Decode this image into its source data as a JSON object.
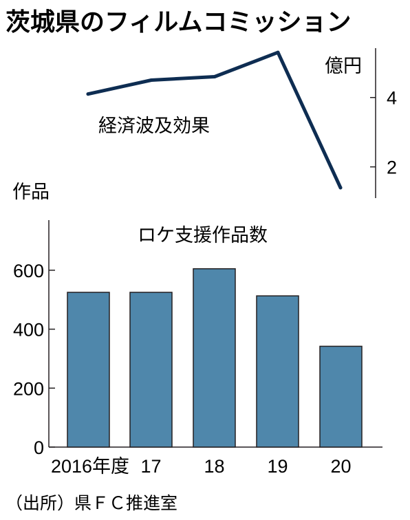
{
  "chart_data": [
    {
      "type": "line",
      "title": "茨城県のフィルムコミッション",
      "series": [
        {
          "name": "経済波及効果",
          "values": [
            4.1,
            4.5,
            4.6,
            5.3,
            1.4
          ]
        }
      ],
      "categories": [
        "2016年度",
        "17",
        "18",
        "19",
        "20"
      ],
      "ylabel": "億円",
      "yticks": [
        2,
        4
      ],
      "ylim": [
        1.1,
        5.7
      ],
      "color": "#0e2d52"
    },
    {
      "type": "bar",
      "series": [
        {
          "name": "ロケ支援作品数",
          "values": [
            525,
            525,
            605,
            513,
            342
          ]
        }
      ],
      "categories": [
        "2016年度",
        "17",
        "18",
        "19",
        "20"
      ],
      "ylabel": "作品",
      "yticks": [
        0,
        200,
        400,
        600
      ],
      "ylim": [
        0,
        750
      ],
      "color": "#4f87ab"
    }
  ],
  "source": "（出所）県ＦＣ推進室"
}
